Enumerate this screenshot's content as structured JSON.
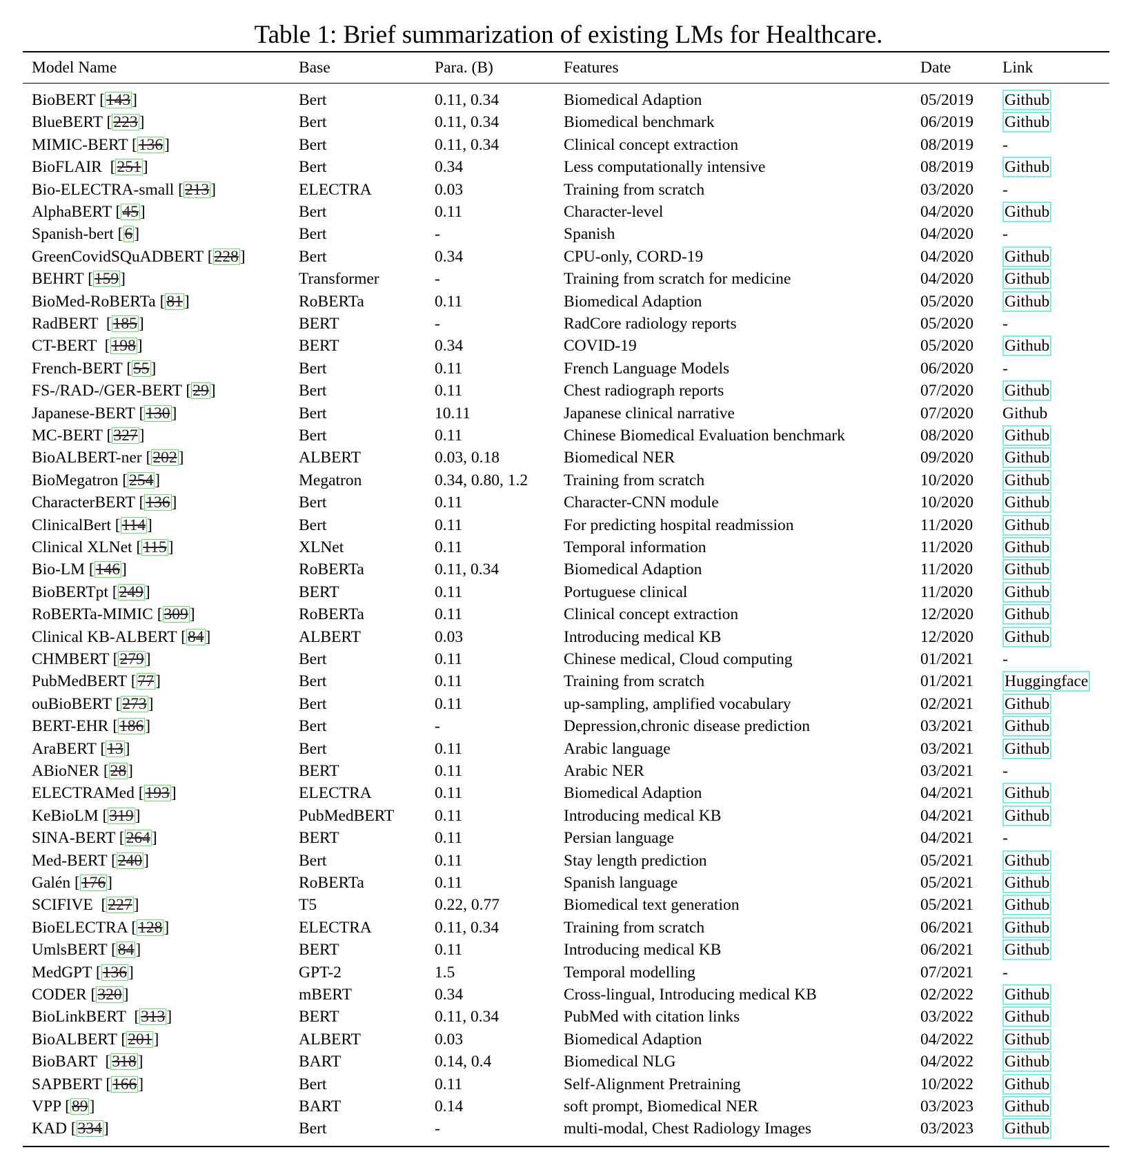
{
  "caption": "Table 1: Brief summarization of existing LMs for Healthcare.",
  "colors": {
    "citation_border": "#5ee35e",
    "link_border": "#7fe9ec"
  },
  "headers": [
    "Model Name",
    "Base",
    "Para. (B)",
    "Features",
    "Date",
    "Link"
  ],
  "rows": [
    {
      "name": "BioBERT",
      "ref": "143",
      "base": "Bert",
      "para": "0.11, 0.34",
      "features": "Biomedical Adaption",
      "date": "05/2019",
      "link": "Github",
      "boxed": true
    },
    {
      "name": "BlueBERT",
      "ref": "223",
      "base": "Bert",
      "para": "0.11, 0.34",
      "features": "Biomedical benchmark",
      "date": "06/2019",
      "link": "Github",
      "boxed": true
    },
    {
      "name": "MIMIC-BERT",
      "ref": "136",
      "base": "Bert",
      "para": "0.11, 0.34",
      "features": "Clinical concept extraction",
      "date": "08/2019",
      "link": "-",
      "boxed": false
    },
    {
      "name": "BioFLAIR ",
      "ref": "251",
      "base": "Bert",
      "para": "0.34",
      "features": "Less computationally intensive",
      "date": "08/2019",
      "link": "Github",
      "boxed": true
    },
    {
      "name": "Bio-ELECTRA-small",
      "ref": "213",
      "base": "ELECTRA",
      "para": "0.03",
      "features": "Training from scratch",
      "date": "03/2020",
      "link": "-",
      "boxed": false
    },
    {
      "name": "AlphaBERT",
      "ref": "45",
      "base": "Bert",
      "para": "0.11",
      "features": "Character-level",
      "date": "04/2020",
      "link": "Github",
      "boxed": true
    },
    {
      "name": "Spanish-bert",
      "ref": "6",
      "base": "Bert",
      "para": "-",
      "features": "Spanish",
      "date": "04/2020",
      "link": "-",
      "boxed": false
    },
    {
      "name": "GreenCovidSQuADBERT",
      "ref": "228",
      "base": "Bert",
      "para": "0.34",
      "features": "CPU-only, CORD-19",
      "date": "04/2020",
      "link": "Github",
      "boxed": true
    },
    {
      "name": "BEHRT",
      "ref": "159",
      "base": "Transformer",
      "para": "-",
      "features": "Training from scratch for medicine",
      "date": "04/2020",
      "link": "Github",
      "boxed": true
    },
    {
      "name": "BioMed-RoBERTa",
      "ref": "81",
      "base": "RoBERTa",
      "para": "0.11",
      "features": "Biomedical Adaption",
      "date": "05/2020",
      "link": "Github",
      "boxed": true
    },
    {
      "name": "RadBERT ",
      "ref": "185",
      "base": "BERT",
      "para": "-",
      "features": "RadCore radiology reports",
      "date": "05/2020",
      "link": "-",
      "boxed": false
    },
    {
      "name": "CT-BERT ",
      "ref": "198",
      "base": "BERT",
      "para": "0.34",
      "features": "COVID-19",
      "date": "05/2020",
      "link": "Github",
      "boxed": true
    },
    {
      "name": "French-BERT",
      "ref": "55",
      "base": "Bert",
      "para": "0.11",
      "features": "French Language Models",
      "date": "06/2020",
      "link": "-",
      "boxed": false
    },
    {
      "name": "FS-/RAD-/GER-BERT",
      "ref": "29",
      "base": "Bert",
      "para": "0.11",
      "features": "Chest radiograph reports",
      "date": "07/2020",
      "link": "Github",
      "boxed": true
    },
    {
      "name": "Japanese-BERT",
      "ref": "130",
      "base": "Bert",
      "para": "10.11",
      "features": "Japanese clinical narrative",
      "date": "07/2020",
      "link": "Github",
      "boxed": false
    },
    {
      "name": "MC-BERT",
      "ref": "327",
      "base": "Bert",
      "para": "0.11",
      "features": "Chinese Biomedical Evaluation benchmark",
      "date": "08/2020",
      "link": "Github",
      "boxed": true
    },
    {
      "name": "BioALBERT-ner",
      "ref": "202",
      "base": "ALBERT",
      "para": "0.03, 0.18",
      "features": "Biomedical NER",
      "date": "09/2020",
      "link": "Github",
      "boxed": true
    },
    {
      "name": "BioMegatron",
      "ref": "254",
      "base": "Megatron",
      "para": "0.34, 0.80, 1.2",
      "features": "Training from scratch",
      "date": "10/2020",
      "link": "Github",
      "boxed": true
    },
    {
      "name": "CharacterBERT",
      "ref": "136",
      "base": "Bert",
      "para": "0.11",
      "features": "Character-CNN module",
      "date": "10/2020",
      "link": "Github",
      "boxed": true
    },
    {
      "name": "ClinicalBert",
      "ref": "114",
      "base": "Bert",
      "para": "0.11",
      "features": "For predicting hospital readmission",
      "date": "11/2020",
      "link": "Github",
      "boxed": true
    },
    {
      "name": "Clinical XLNet",
      "ref": "115",
      "base": "XLNet",
      "para": "0.11",
      "features": "Temporal information",
      "date": "11/2020",
      "link": "Github",
      "boxed": true
    },
    {
      "name": "Bio-LM",
      "ref": "146",
      "base": "RoBERTa",
      "para": "0.11, 0.34",
      "features": "Biomedical Adaption",
      "date": "11/2020",
      "link": "Github",
      "boxed": true
    },
    {
      "name": "BioBERTpt",
      "ref": "249",
      "base": "BERT",
      "para": "0.11",
      "features": "Portuguese clinical",
      "date": "11/2020",
      "link": "Github",
      "boxed": true
    },
    {
      "name": "RoBERTa-MIMIC",
      "ref": "309",
      "base": "RoBERTa",
      "para": "0.11",
      "features": "Clinical concept extraction",
      "date": "12/2020",
      "link": "Github",
      "boxed": true
    },
    {
      "name": "Clinical KB-ALBERT",
      "ref": "84",
      "base": "ALBERT",
      "para": "0.03",
      "features": "Introducing medical KB",
      "date": "12/2020",
      "link": "Github",
      "boxed": true
    },
    {
      "name": "CHMBERT",
      "ref": "279",
      "base": "Bert",
      "para": "0.11",
      "features": "Chinese medical, Cloud computing",
      "date": "01/2021",
      "link": "-",
      "boxed": false
    },
    {
      "name": "PubMedBERT",
      "ref": "77",
      "base": "Bert",
      "para": "0.11",
      "features": "Training from scratch",
      "date": "01/2021",
      "link": "Huggingface",
      "boxed": true,
      "wide": true
    },
    {
      "name": "ouBioBERT",
      "ref": "273",
      "base": "Bert",
      "para": "0.11",
      "features": "up-sampling, amplified vocabulary",
      "date": "02/2021",
      "link": "Github",
      "boxed": true
    },
    {
      "name": "BERT-EHR",
      "ref": "186",
      "base": "Bert",
      "para": "-",
      "features": "Depression,chronic disease prediction",
      "date": "03/2021",
      "link": "Github",
      "boxed": true
    },
    {
      "name": "AraBERT",
      "ref": "13",
      "base": "Bert",
      "para": "0.11",
      "features": "Arabic language",
      "date": "03/2021",
      "link": "Github",
      "boxed": true
    },
    {
      "name": "ABioNER",
      "ref": "28",
      "base": "BERT",
      "para": "0.11",
      "features": "Arabic NER",
      "date": "03/2021",
      "link": "-",
      "boxed": false
    },
    {
      "name": "ELECTRAMed",
      "ref": "193",
      "base": "ELECTRA",
      "para": "0.11",
      "features": "Biomedical Adaption",
      "date": "04/2021",
      "link": "Github",
      "boxed": true
    },
    {
      "name": "KeBioLM",
      "ref": "319",
      "base": "PubMedBERT",
      "para": "0.11",
      "features": "Introducing medical KB",
      "date": "04/2021",
      "link": "Github",
      "boxed": true
    },
    {
      "name": "SINA-BERT",
      "ref": "264",
      "base": "BERT",
      "para": "0.11",
      "features": "Persian language",
      "date": "04/2021",
      "link": "-",
      "boxed": false
    },
    {
      "name": "Med-BERT",
      "ref": "240",
      "base": "Bert",
      "para": "0.11",
      "features": "Stay length prediction",
      "date": "05/2021",
      "link": "Github",
      "boxed": true
    },
    {
      "name": "Galén",
      "ref": "176",
      "base": "RoBERTa",
      "para": "0.11",
      "features": "Spanish language",
      "date": "05/2021",
      "link": "Github",
      "boxed": true
    },
    {
      "name": "SCIFIVE ",
      "ref": "227",
      "base": "T5",
      "para": "0.22, 0.77",
      "features": "Biomedical text generation",
      "date": "05/2021",
      "link": "Github",
      "boxed": true
    },
    {
      "name": "BioELECTRA",
      "ref": "128",
      "base": "ELECTRA",
      "para": "0.11, 0.34",
      "features": "Training from scratch",
      "date": "06/2021",
      "link": "Github",
      "boxed": true
    },
    {
      "name": "UmlsBERT",
      "ref": "84",
      "base": "BERT",
      "para": "0.11",
      "features": "Introducing medical KB",
      "date": "06/2021",
      "link": "Github",
      "boxed": true
    },
    {
      "name": "MedGPT",
      "ref": "136",
      "base": "GPT-2",
      "para": "1.5",
      "features": "Temporal modelling",
      "date": "07/2021",
      "link": "-",
      "boxed": false
    },
    {
      "name": "CODER",
      "ref": "320",
      "base": "mBERT",
      "para": "0.34",
      "features": "Cross-lingual, Introducing medical KB",
      "date": "02/2022",
      "link": "Github",
      "boxed": true
    },
    {
      "name": "BioLinkBERT ",
      "ref": "313",
      "base": "BERT",
      "para": "0.11, 0.34",
      "features": "PubMed with citation links",
      "date": "03/2022",
      "link": "Github",
      "boxed": true
    },
    {
      "name": "BioALBERT",
      "ref": "201",
      "base": "ALBERT",
      "para": "0.03",
      "features": "Biomedical Adaption",
      "date": "04/2022",
      "link": "Github",
      "boxed": true
    },
    {
      "name": "BioBART ",
      "ref": "318",
      "base": "BART",
      "para": "0.14, 0.4",
      "features": "Biomedical NLG",
      "date": "04/2022",
      "link": "Github",
      "boxed": true
    },
    {
      "name": "SAPBERT",
      "ref": "166",
      "base": "Bert",
      "para": "0.11",
      "features": "Self-Alignment Pretraining",
      "date": "10/2022",
      "link": "Github",
      "boxed": true
    },
    {
      "name": "VPP",
      "ref": "89",
      "base": "BART",
      "para": "0.14",
      "features": "soft prompt, Biomedical NER",
      "date": "03/2023",
      "link": "Github",
      "boxed": true
    },
    {
      "name": "KAD",
      "ref": "334",
      "base": "Bert",
      "para": "-",
      "features": "multi-modal, Chest Radiology Images",
      "date": "03/2023",
      "link": "Github",
      "boxed": true
    }
  ]
}
